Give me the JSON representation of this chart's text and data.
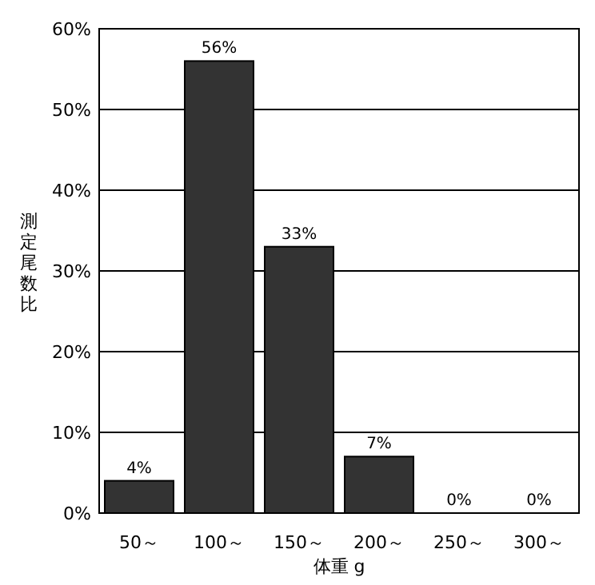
{
  "chart_data": {
    "type": "bar",
    "ylabel": "測定尾数比",
    "xlabel": "体重 g",
    "categories": [
      "50～",
      "100～",
      "150～",
      "200～",
      "250～",
      "300～"
    ],
    "values": [
      4,
      56,
      33,
      7,
      0,
      0
    ],
    "value_labels": [
      "4%",
      "56%",
      "33%",
      "7%",
      "0%",
      "0%"
    ],
    "color": "#333333",
    "ylim": [
      0,
      60
    ],
    "yticks": [
      {
        "value": 0,
        "label": "0%"
      },
      {
        "value": 10,
        "label": "10%"
      },
      {
        "value": 20,
        "label": "20%"
      },
      {
        "value": 30,
        "label": "30%"
      },
      {
        "value": 40,
        "label": "40%"
      },
      {
        "value": 50,
        "label": "50%"
      },
      {
        "value": 60,
        "label": "60%"
      }
    ],
    "grid": "y"
  }
}
